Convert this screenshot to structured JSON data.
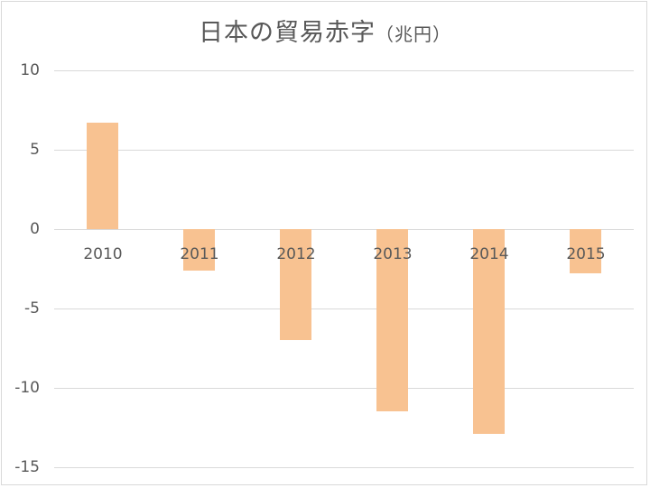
{
  "chart_data": {
    "type": "bar",
    "title": "日本の貿易赤字",
    "title_unit": "（兆円）",
    "xlabel": "",
    "ylabel": "",
    "categories": [
      "2010",
      "2011",
      "2012",
      "2013",
      "2014",
      "2015"
    ],
    "values": [
      6.7,
      -2.6,
      -7.0,
      -11.5,
      -12.9,
      -2.8
    ],
    "ylim": [
      -15,
      10
    ],
    "yticks": [
      "10",
      "5",
      "0",
      "-5",
      "-10",
      "-15"
    ],
    "grid": true,
    "legend": "none",
    "bar_color": "#f8c291"
  }
}
